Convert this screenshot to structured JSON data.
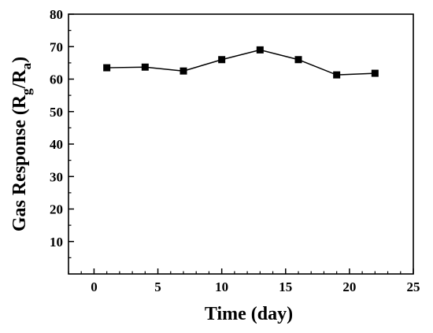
{
  "chart_data": {
    "type": "line",
    "xlabel": "Time (day)",
    "ylabel": {
      "main": "Gas Response (R",
      "sub1": "g",
      "mid": "/R",
      "sub2": "a",
      "end": ")"
    },
    "xlim": [
      -2,
      25
    ],
    "ylim": [
      0,
      80
    ],
    "xticks": [
      0,
      5,
      10,
      15,
      20,
      25
    ],
    "yticks": [
      10,
      20,
      30,
      40,
      50,
      60,
      70,
      80
    ],
    "grid": false,
    "marker": "square",
    "series": [
      {
        "x": [
          1,
          4,
          7,
          10,
          13,
          16,
          19,
          22
        ],
        "y": [
          63.5,
          63.7,
          62.5,
          66,
          69,
          66,
          61.3,
          61.8
        ]
      }
    ]
  }
}
